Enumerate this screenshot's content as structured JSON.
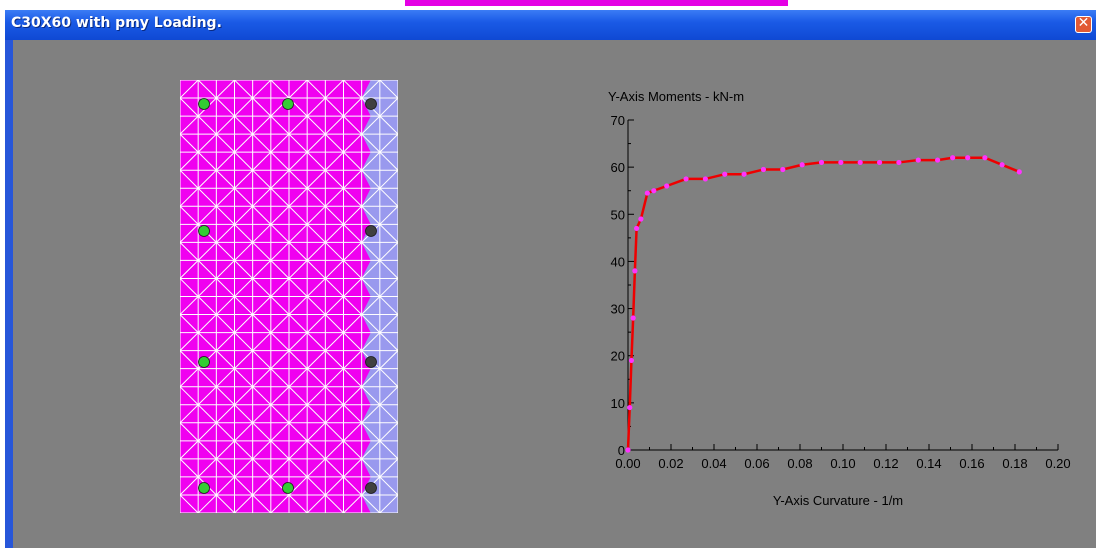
{
  "window": {
    "title": "C30X60 with pmy Loading.",
    "close_glyph": "✕"
  },
  "section": {
    "concrete_color": "#f000f0",
    "cracked_color": "#9999ee",
    "mesh_color": "#ffffff",
    "rebars": [
      {
        "state": "tension",
        "color": "#33cc33"
      },
      {
        "state": "tension",
        "color": "#33cc33"
      },
      {
        "state": "compression",
        "color": "#404040"
      },
      {
        "state": "tension",
        "color": "#33cc33"
      },
      {
        "state": "compression",
        "color": "#404040"
      },
      {
        "state": "tension",
        "color": "#33cc33"
      },
      {
        "state": "compression",
        "color": "#404040"
      },
      {
        "state": "tension",
        "color": "#33cc33"
      },
      {
        "state": "tension",
        "color": "#33cc33"
      },
      {
        "state": "compression",
        "color": "#404040"
      }
    ]
  },
  "chart_data": {
    "type": "line",
    "title": "Y-Axis Moments - kN-m",
    "xlabel": "Y-Axis Curvature - 1/m",
    "ylabel": "",
    "xlim": [
      0,
      0.2
    ],
    "ylim": [
      0,
      70
    ],
    "x_ticks": [
      "0.00",
      "0.02",
      "0.04",
      "0.06",
      "0.08",
      "0.10",
      "0.12",
      "0.14",
      "0.16",
      "0.18",
      "0.20"
    ],
    "y_ticks": [
      "0",
      "10",
      "20",
      "30",
      "40",
      "50",
      "60",
      "70"
    ],
    "line_color": "#ee0000",
    "marker_color": "#ff33ff",
    "grid": false,
    "series": [
      {
        "x": [
          0,
          0.0008,
          0.0016,
          0.0024,
          0.0032,
          0.004,
          0.006,
          0.009,
          0.012,
          0.018,
          0.027,
          0.036,
          0.045,
          0.054,
          0.063,
          0.072,
          0.081,
          0.09,
          0.099,
          0.108,
          0.117,
          0.126,
          0.135,
          0.144,
          0.151,
          0.158,
          0.166,
          0.174,
          0.182
        ],
        "y": [
          0,
          9,
          19,
          28,
          38,
          47,
          49,
          54.5,
          55,
          56,
          57.5,
          57.5,
          58.5,
          58.5,
          59.5,
          59.5,
          60.5,
          61,
          61,
          61,
          61,
          61,
          61.5,
          61.5,
          62,
          62,
          62,
          60.5,
          59
        ]
      }
    ]
  }
}
